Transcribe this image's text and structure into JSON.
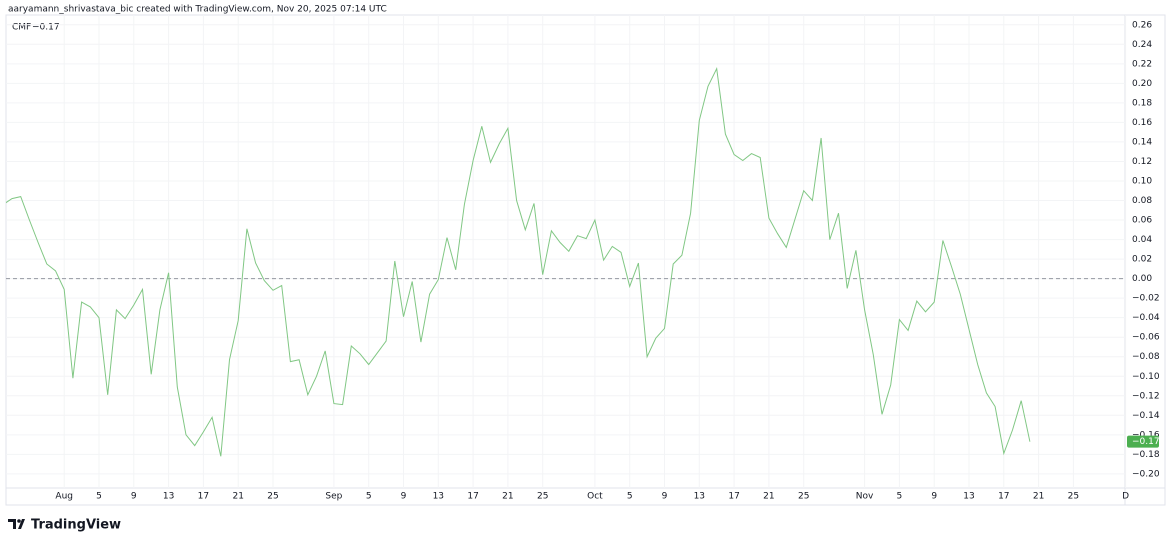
{
  "header": "aaryamann_shrivastava_bic created with TradingView.com, Nov 20, 2025 07:14 UTC",
  "brand": "TradingView",
  "chart_data": {
    "type": "line",
    "categories": [
      null,
      null,
      null,
      null,
      null,
      null,
      null,
      "Aug",
      null,
      null,
      null,
      "5",
      null,
      null,
      null,
      "9",
      null,
      null,
      null,
      "13",
      null,
      null,
      null,
      "17",
      null,
      null,
      null,
      "21",
      null,
      null,
      null,
      "25",
      null,
      null,
      null,
      null,
      null,
      null,
      "Sep",
      null,
      null,
      null,
      "5",
      null,
      null,
      null,
      "9",
      null,
      null,
      null,
      "13",
      null,
      null,
      null,
      "17",
      null,
      null,
      null,
      "21",
      null,
      null,
      null,
      "25",
      null,
      null,
      null,
      null,
      null,
      "Oct",
      null,
      null,
      null,
      "5",
      null,
      null,
      null,
      "9",
      null,
      null,
      null,
      "13",
      null,
      null,
      null,
      "17",
      null,
      null,
      null,
      "21",
      null,
      null,
      null,
      "25",
      null,
      null,
      null,
      null,
      null,
      null,
      "Nov",
      null,
      null,
      null,
      "5",
      null,
      null,
      null,
      "9",
      null,
      null,
      null,
      "13",
      null,
      null,
      null,
      "17",
      null,
      null,
      null,
      "21",
      null,
      null,
      null,
      "25",
      null,
      null,
      null,
      null,
      null,
      "D"
    ],
    "series": [
      {
        "name": "CMF",
        "color": "#81c784",
        "last_label": "−0.17",
        "badge_color": "#4caf50",
        "values": [
          0.076,
          0.082,
          0.084,
          0.06,
          0.037,
          0.015,
          0.008,
          -0.011,
          -0.102,
          -0.024,
          -0.029,
          -0.04,
          -0.119,
          -0.032,
          -0.041,
          -0.027,
          -0.011,
          -0.098,
          -0.032,
          0.006,
          -0.111,
          -0.16,
          -0.171,
          -0.157,
          -0.142,
          -0.182,
          -0.083,
          -0.043,
          0.051,
          0.016,
          -0.002,
          -0.012,
          -0.007,
          -0.085,
          -0.083,
          -0.119,
          -0.1,
          -0.074,
          -0.128,
          -0.129,
          -0.069,
          -0.077,
          -0.088,
          -0.076,
          -0.064,
          0.018,
          -0.039,
          -0.003,
          -0.065,
          -0.016,
          -0.001,
          0.042,
          0.009,
          0.076,
          0.121,
          0.156,
          0.119,
          0.138,
          0.154,
          0.08,
          0.05,
          0.077,
          0.004,
          0.049,
          0.037,
          0.028,
          0.044,
          0.041,
          0.06,
          0.019,
          0.033,
          0.027,
          -0.008,
          0.016,
          -0.08,
          -0.061,
          -0.051,
          0.015,
          0.024,
          0.067,
          0.162,
          0.197,
          0.215,
          0.148,
          0.127,
          0.121,
          0.128,
          0.124,
          0.062,
          0.046,
          0.032,
          0.061,
          0.09,
          0.08,
          0.144,
          0.04,
          0.067,
          -0.01,
          0.029,
          -0.032,
          -0.078,
          -0.139,
          -0.109,
          -0.042,
          -0.053,
          -0.023,
          -0.034,
          -0.024,
          0.039,
          0.012,
          -0.016,
          -0.052,
          -0.088,
          -0.117,
          -0.131,
          -0.179,
          -0.155,
          -0.125,
          -0.167,
          null,
          null,
          null,
          null,
          null,
          null,
          null,
          null,
          null,
          null,
          null
        ]
      }
    ],
    "ylim": [
      -0.2165,
      0.27
    ],
    "yticks": [
      {
        "value": 0.26,
        "label": "0.26"
      },
      {
        "value": 0.24,
        "label": "0.24"
      },
      {
        "value": 0.22,
        "label": "0.22"
      },
      {
        "value": 0.2,
        "label": "0.20"
      },
      {
        "value": 0.18,
        "label": "0.18"
      },
      {
        "value": 0.16,
        "label": "0.16"
      },
      {
        "value": 0.14,
        "label": "0.14"
      },
      {
        "value": 0.12,
        "label": "0.12"
      },
      {
        "value": 0.1,
        "label": "0.10"
      },
      {
        "value": 0.08,
        "label": "0.08"
      },
      {
        "value": 0.06,
        "label": "0.06"
      },
      {
        "value": 0.04,
        "label": "0.04"
      },
      {
        "value": 0.02,
        "label": "0.02"
      },
      {
        "value": 0,
        "label": "0.00"
      },
      {
        "value": -0.02,
        "label": "−0.02"
      },
      {
        "value": -0.04,
        "label": "−0.04"
      },
      {
        "value": -0.06,
        "label": "−0.06"
      },
      {
        "value": -0.08,
        "label": "−0.08"
      },
      {
        "value": -0.1,
        "label": "−0.10"
      },
      {
        "value": -0.12,
        "label": "−0.12"
      },
      {
        "value": -0.14,
        "label": "−0.14"
      },
      {
        "value": -0.16,
        "label": "−0.16"
      },
      {
        "value": -0.18,
        "label": "−0.18"
      },
      {
        "value": -0.2,
        "label": "−0.20"
      }
    ],
    "zero_line": 0,
    "grid": true
  }
}
